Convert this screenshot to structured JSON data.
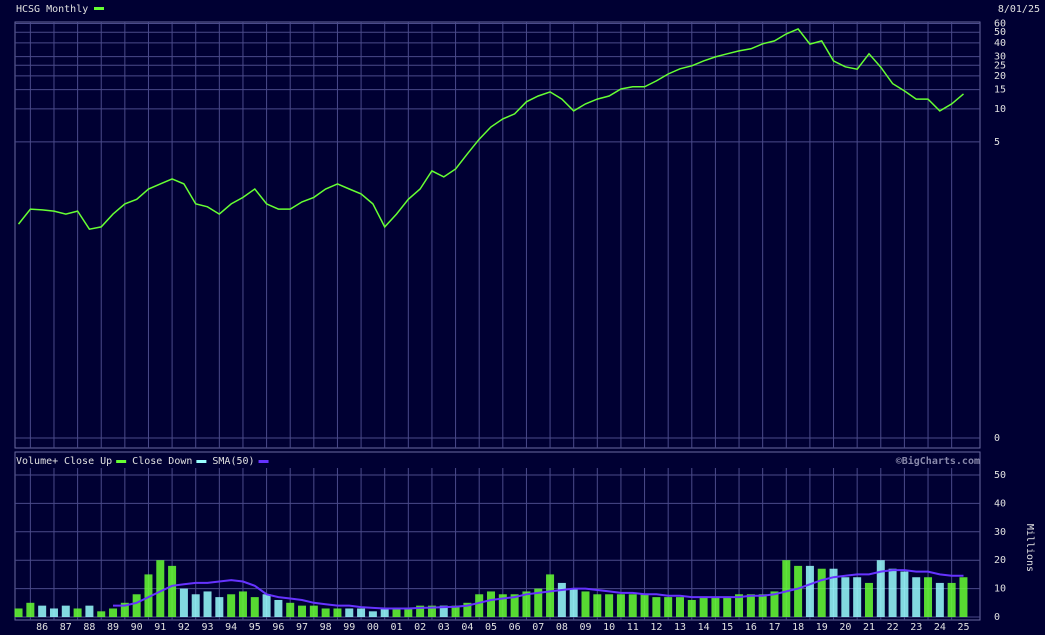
{
  "chart_data": {
    "type": "stock",
    "title": "HCSG Monthly",
    "date": "8/01/25",
    "credit": "©BigCharts.com",
    "x": [
      1985.5,
      1986,
      1986.5,
      1987,
      1987.5,
      1988,
      1988.5,
      1989,
      1989.5,
      1990,
      1990.5,
      1991,
      1991.5,
      1992,
      1992.5,
      1993,
      1993.5,
      1994,
      1994.5,
      1995,
      1995.5,
      1996,
      1996.5,
      1997,
      1997.5,
      1998,
      1998.5,
      1999,
      1999.5,
      2000,
      2000.5,
      2001,
      2001.5,
      2002,
      2002.5,
      2003,
      2003.5,
      2004,
      2004.5,
      2005,
      2005.5,
      2006,
      2006.5,
      2007,
      2007.5,
      2008,
      2008.5,
      2009,
      2009.5,
      2010,
      2010.5,
      2011,
      2011.5,
      2012,
      2012.5,
      2013,
      2013.5,
      2014,
      2014.5,
      2015,
      2015.5,
      2016,
      2016.5,
      2017,
      2017.5,
      2018,
      2018.5,
      2019,
      2019.5,
      2020,
      2020.5,
      2021,
      2021.5,
      2022,
      2022.5,
      2023,
      2023.5,
      2024,
      2024.5,
      2025,
      2025.5
    ],
    "xlim": [
      1985.35,
      2026.2
    ],
    "xticks": [
      {
        "value": 1986,
        "label": "86"
      },
      {
        "value": 1987,
        "label": "87"
      },
      {
        "value": 1988,
        "label": "88"
      },
      {
        "value": 1989,
        "label": "89"
      },
      {
        "value": 1990,
        "label": "90"
      },
      {
        "value": 1991,
        "label": "91"
      },
      {
        "value": 1992,
        "label": "92"
      },
      {
        "value": 1993,
        "label": "93"
      },
      {
        "value": 1994,
        "label": "94"
      },
      {
        "value": 1995,
        "label": "95"
      },
      {
        "value": 1996,
        "label": "96"
      },
      {
        "value": 1997,
        "label": "97"
      },
      {
        "value": 1998,
        "label": "98"
      },
      {
        "value": 1999,
        "label": "99"
      },
      {
        "value": 2000,
        "label": "00"
      },
      {
        "value": 2001,
        "label": "01"
      },
      {
        "value": 2002,
        "label": "02"
      },
      {
        "value": 2003,
        "label": "03"
      },
      {
        "value": 2004,
        "label": "04"
      },
      {
        "value": 2005,
        "label": "05"
      },
      {
        "value": 2006,
        "label": "06"
      },
      {
        "value": 2007,
        "label": "07"
      },
      {
        "value": 2008,
        "label": "08"
      },
      {
        "value": 2009,
        "label": "09"
      },
      {
        "value": 2010,
        "label": "10"
      },
      {
        "value": 2011,
        "label": "11"
      },
      {
        "value": 2012,
        "label": "12"
      },
      {
        "value": 2013,
        "label": "13"
      },
      {
        "value": 2014,
        "label": "14"
      },
      {
        "value": 2015,
        "label": "15"
      },
      {
        "value": 2016,
        "label": "16"
      },
      {
        "value": 2017,
        "label": "17"
      },
      {
        "value": 2018,
        "label": "18"
      },
      {
        "value": 2019,
        "label": "19"
      },
      {
        "value": 2020,
        "label": "20"
      },
      {
        "value": 2021,
        "label": "21"
      },
      {
        "value": 2022,
        "label": "22"
      },
      {
        "value": 2023,
        "label": "23"
      },
      {
        "value": 2024,
        "label": "24"
      },
      {
        "value": 2025,
        "label": "25"
      }
    ],
    "price": {
      "color": "#66ff33",
      "log": true,
      "ylim": [
        0.0081,
        62
      ],
      "yticks": [
        60,
        50,
        40,
        30,
        25,
        20,
        15,
        10,
        5,
        {
          "value": 0.01,
          "label": "0"
        }
      ],
      "values": [
        0.89,
        1.22,
        1.2,
        1.17,
        1.1,
        1.17,
        0.8,
        0.84,
        1.1,
        1.36,
        1.5,
        1.86,
        2.07,
        2.3,
        2.07,
        1.36,
        1.28,
        1.1,
        1.36,
        1.56,
        1.86,
        1.36,
        1.22,
        1.22,
        1.42,
        1.56,
        1.86,
        2.07,
        1.86,
        1.68,
        1.36,
        0.84,
        1.1,
        1.5,
        1.86,
        2.72,
        2.4,
        2.83,
        3.9,
        5.3,
        6.85,
        8.1,
        9,
        11.6,
        13.1,
        14.3,
        12.3,
        9.6,
        11.1,
        12.3,
        13.1,
        15.2,
        15.9,
        15.9,
        18,
        20.8,
        23.2,
        24.7,
        27.4,
        29.8,
        31.8,
        33.8,
        35.3,
        39.2,
        41.7,
        48.3,
        53.6,
        39,
        41.7,
        27.4,
        24.2,
        23,
        31.8,
        24,
        17,
        14.6,
        12.3,
        12.3,
        9.6,
        11.1,
        13.7
      ]
    },
    "volume": {
      "title": "Volume+",
      "axis_label": "Millions",
      "ylim": [
        0,
        50
      ],
      "yticks": [
        0,
        10,
        20,
        30,
        40,
        50
      ],
      "series": [
        {
          "name": "Close Up",
          "color": "#66ff33"
        },
        {
          "name": "Close Down",
          "color": "#99ffff"
        }
      ],
      "values": [
        3,
        5,
        4,
        3,
        4,
        3,
        4,
        2,
        3,
        5,
        8,
        15,
        20,
        18,
        10,
        8,
        9,
        7,
        8,
        9,
        7,
        8,
        6,
        5,
        4,
        4,
        3,
        3,
        3,
        3,
        2,
        3,
        3,
        3,
        4,
        4,
        4,
        4,
        5,
        8,
        9,
        8,
        8,
        9,
        10,
        15,
        12,
        10,
        9,
        8,
        8,
        8,
        8,
        8,
        7,
        7,
        7,
        6,
        7,
        7,
        7,
        8,
        8,
        8,
        9,
        20,
        18,
        18,
        17,
        17,
        14,
        14,
        12,
        20,
        17,
        16,
        14,
        14,
        12,
        12,
        14
      ],
      "sma": {
        "name": "SMA(50)",
        "color": "#6633ff",
        "values": [
          null,
          null,
          null,
          null,
          null,
          null,
          null,
          null,
          4,
          4,
          5,
          7,
          9,
          11,
          11.5,
          12,
          12,
          12.5,
          13,
          12.5,
          11,
          8,
          7,
          6.5,
          6,
          5,
          4.5,
          4,
          4,
          3.5,
          3.2,
          3,
          3,
          3,
          3.2,
          3.3,
          3.5,
          3.6,
          4,
          5,
          6,
          6.5,
          7,
          8,
          8.5,
          9,
          9.5,
          10,
          10,
          9.5,
          9,
          8.5,
          8.5,
          8,
          8,
          7.5,
          7.5,
          7,
          7,
          7,
          7,
          7,
          7.5,
          7.5,
          8,
          9,
          10,
          11.5,
          13,
          14,
          14.5,
          15,
          15,
          16,
          16.5,
          16.5,
          16,
          16,
          15,
          14.5,
          14.5
        ]
      }
    }
  }
}
